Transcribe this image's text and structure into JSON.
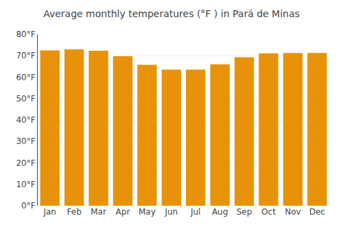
{
  "chart_data": {
    "type": "bar",
    "title": "Average monthly temperatures (°F ) in Pará de Minas",
    "categories": [
      "Jan",
      "Feb",
      "Mar",
      "Apr",
      "May",
      "Jun",
      "Jul",
      "Aug",
      "Sep",
      "Oct",
      "Nov",
      "Dec"
    ],
    "values": [
      72.5,
      73.0,
      72.3,
      69.8,
      65.8,
      63.5,
      63.5,
      66.0,
      69.3,
      71.1,
      71.3,
      71.3
    ],
    "color": "#E8920A",
    "ylim": [
      0,
      80
    ],
    "yticks": [
      {
        "value": 0,
        "label": "0°F"
      },
      {
        "value": 10,
        "label": "10°F"
      },
      {
        "value": 20,
        "label": "20°F"
      },
      {
        "value": 30,
        "label": "30°F"
      },
      {
        "value": 40,
        "label": "40°F"
      },
      {
        "value": 50,
        "label": "50°F"
      },
      {
        "value": 60,
        "label": "60°F"
      },
      {
        "value": 70,
        "label": "70°F"
      },
      {
        "value": 80,
        "label": "80°F"
      }
    ],
    "grid": true
  }
}
